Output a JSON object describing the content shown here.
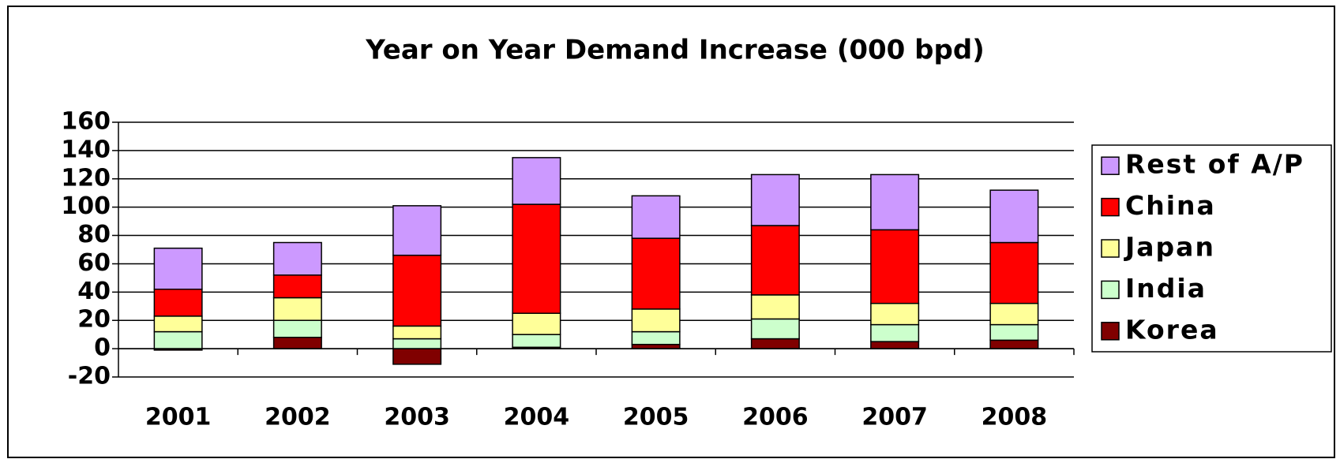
{
  "chart_data": {
    "type": "stacked_bar",
    "title": "Year on Year Demand Increase (000 bpd)",
    "categories": [
      "2001",
      "2002",
      "2003",
      "2004",
      "2005",
      "2006",
      "2007",
      "2008"
    ],
    "series": [
      {
        "name": "Korea",
        "color": "#800000",
        "values": [
          -1,
          8,
          -11,
          1,
          3,
          7,
          5,
          6
        ]
      },
      {
        "name": "India",
        "color": "#ccffcc",
        "values": [
          12,
          12,
          7,
          9,
          9,
          14,
          12,
          11
        ]
      },
      {
        "name": "Japan",
        "color": "#ffff99",
        "values": [
          11,
          16,
          9,
          15,
          16,
          17,
          15,
          15
        ]
      },
      {
        "name": "China",
        "color": "#ff0000",
        "values": [
          19,
          16,
          50,
          77,
          50,
          49,
          52,
          43
        ]
      },
      {
        "name": "Rest of A/P",
        "color": "#cc99ff",
        "values": [
          29,
          23,
          35,
          33,
          30,
          36,
          39,
          37
        ]
      }
    ],
    "ylim": [
      -20,
      160
    ],
    "yticks": [
      -20,
      0,
      20,
      40,
      60,
      80,
      100,
      120,
      140,
      160
    ],
    "grid": true,
    "legend": "right"
  }
}
